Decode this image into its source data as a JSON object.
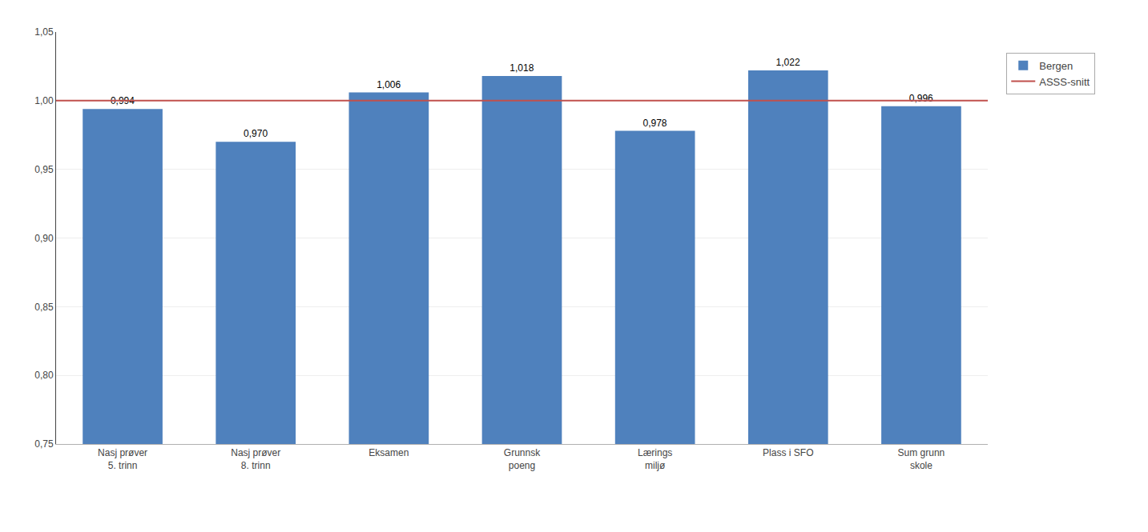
{
  "chart_data": {
    "type": "bar",
    "categories": [
      "Nasj prøver\n5. trinn",
      "Nasj prøver\n8. trinn",
      "Eksamen",
      "Grunnsk\npoeng",
      "Lærings\nmiljø",
      "Plass i SFO",
      "Sum grunn\nskole"
    ],
    "series": [
      {
        "name": "Bergen",
        "type": "bar",
        "color": "#4f81bd",
        "values": [
          0.994,
          0.97,
          1.006,
          1.018,
          0.978,
          1.022,
          0.996
        ],
        "value_labels": [
          "0,994",
          "0,970",
          "1,006",
          "1,018",
          "0,978",
          "1,022",
          "0,996"
        ]
      },
      {
        "name": "ASSS-snitt",
        "type": "hline",
        "color": "#c0504d",
        "value": 1.0
      }
    ],
    "ylim": [
      0.75,
      1.05
    ],
    "yticks": [
      {
        "value": 0.75,
        "label": "0,75"
      },
      {
        "value": 0.8,
        "label": "0,80"
      },
      {
        "value": 0.85,
        "label": "0,85"
      },
      {
        "value": 0.9,
        "label": "0,90"
      },
      {
        "value": 0.95,
        "label": "0,95"
      },
      {
        "value": 1.0,
        "label": "1,00"
      },
      {
        "value": 1.05,
        "label": "1,05"
      }
    ],
    "grid": true,
    "data_labels": true,
    "legend": "right"
  }
}
